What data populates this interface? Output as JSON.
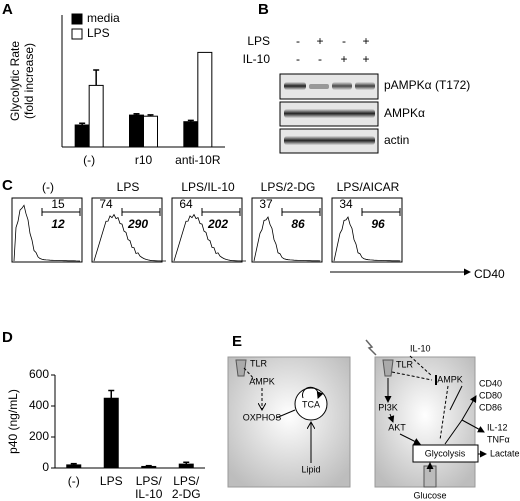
{
  "panel_labels": [
    "A",
    "B",
    "C",
    "D",
    "E"
  ],
  "chart_data": [
    {
      "type": "bar",
      "ylabel": [
        "Glycolytic Rate",
        "(fold increase)"
      ],
      "categories": [
        "(-)",
        "r10",
        "anti-10R"
      ],
      "series": [
        {
          "name": "media",
          "color": "#000000",
          "values": [
            1.0,
            1.45,
            1.15
          ],
          "errors": [
            0.08,
            0.06,
            0.06
          ]
        },
        {
          "name": "LPS",
          "color": "#ffffff",
          "values": [
            2.8,
            1.4,
            4.3
          ],
          "errors": [
            0.7,
            0.06,
            0
          ]
        }
      ],
      "ylim": [
        0,
        6
      ]
    },
    {
      "type": "bar",
      "ylabel": "p40 (ng/mL)",
      "categories": [
        "(-)",
        "LPS",
        "LPS/IL-10",
        "LPS/2-DG"
      ],
      "values": [
        20,
        450,
        10,
        25
      ],
      "errors": [
        8,
        50,
        5,
        12
      ],
      "color": "#000000",
      "ylim": [
        0,
        600
      ],
      "yticks": [
        0,
        200,
        400,
        600
      ]
    }
  ],
  "blot": {
    "conditions": [
      {
        "label": "LPS",
        "signs": [
          "-",
          "+",
          "-",
          "+"
        ]
      },
      {
        "label": "IL-10",
        "signs": [
          "-",
          "-",
          "+",
          "+"
        ]
      }
    ],
    "bands": [
      "pAMPKα (T172)",
      "AMPKα",
      "actin"
    ]
  },
  "histograms": {
    "panels": [
      {
        "title": "(-)",
        "percent": 15,
        "mfi": 12
      },
      {
        "title": "LPS",
        "percent": 74,
        "mfi": 290
      },
      {
        "title": "LPS/IL-10",
        "percent": 64,
        "mfi": 202
      },
      {
        "title": "LPS/2-DG",
        "percent": 37,
        "mfi": 86
      },
      {
        "title": "LPS/AICAR",
        "percent": 34,
        "mfi": 96
      }
    ],
    "axis_label": "CD40"
  },
  "diagram": {
    "left": [
      "TLR",
      "AMPK",
      "TCA",
      "OXPHOS",
      "Lipid"
    ],
    "right": [
      "TLR",
      "IL-10",
      "AMPK",
      "PI3K",
      "AKT",
      "Glycolysis",
      "Lactate",
      "Glucose",
      "CD40",
      "CD80",
      "CD86",
      "IL-12",
      "TNFα"
    ]
  }
}
